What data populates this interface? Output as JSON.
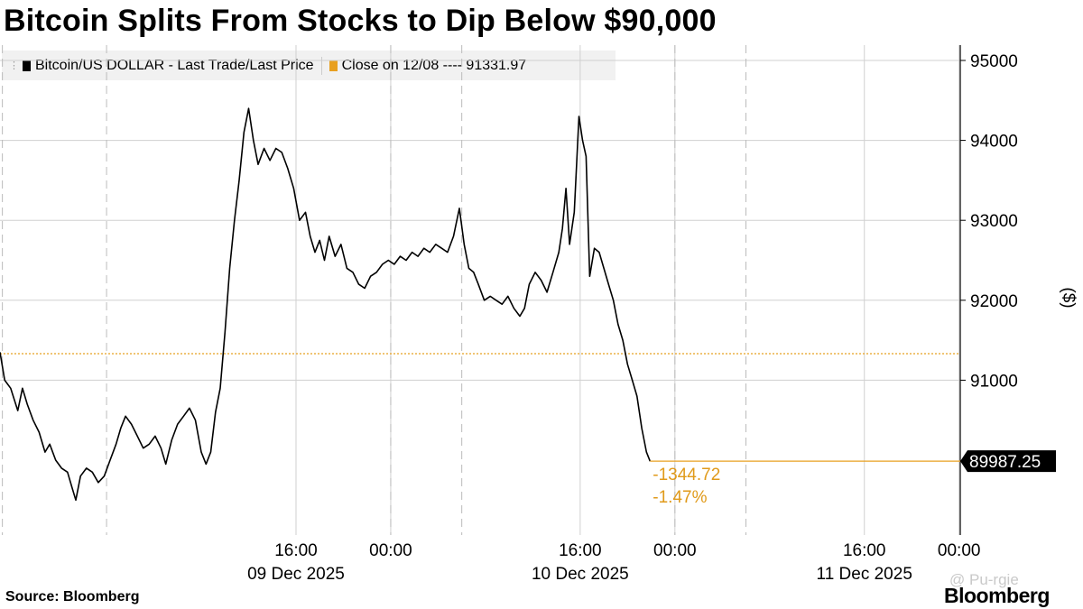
{
  "header": {
    "title": "Bitcoin Splits From Stocks to Dip Below $90,000"
  },
  "legend": {
    "series_label": "Bitcoin/US DOLLAR - Last Trade/Last Price",
    "close_label": "Close on 12/08 ---- 91331.97"
  },
  "footer": {
    "source": "Source:  Bloomberg",
    "brand": "Bloomberg",
    "watermark": "@ Pu-rgie"
  },
  "colors": {
    "series": "#000000",
    "close": "#e8a020",
    "grid": "#d0d0d0",
    "text_orange": "#e09a1a"
  },
  "chart_data": {
    "type": "line",
    "ylabel": "($)",
    "y_ticks": [
      91000,
      92000,
      93000,
      94000,
      95000
    ],
    "ylim": [
      89000,
      95200
    ],
    "xlim_hours": [
      -9,
      72.1
    ],
    "x_time_labels": [
      {
        "hour": 16,
        "label": "16:00"
      },
      {
        "hour": 24,
        "label": "00:00"
      },
      {
        "hour": 40,
        "label": "16:00"
      },
      {
        "hour": 48,
        "label": "00:00"
      },
      {
        "hour": 64,
        "label": "16:00"
      },
      {
        "hour": 72,
        "label": "00:00"
      }
    ],
    "x_date_labels": [
      {
        "hour": 16,
        "label": "09 Dec 2025"
      },
      {
        "hour": 40,
        "label": "10 Dec 2025"
      },
      {
        "hour": 64,
        "label": "11 Dec 2025"
      }
    ],
    "day_dividers_hours": [
      0,
      24,
      48
    ],
    "session_dividers_hours": [
      -8.8,
      30,
      54
    ],
    "reference_line": {
      "label": "Close on 12/08",
      "value": 91331.97
    },
    "last_value": {
      "value": 89987.25,
      "label": "89987.25",
      "change": "-1344.72",
      "change_pct": "-1.47%"
    },
    "series": [
      {
        "name": "Bitcoin/US DOLLAR - Last Trade/Last Price",
        "points": [
          [
            -9,
            91350
          ],
          [
            -8.6,
            91000
          ],
          [
            -8.1,
            90900
          ],
          [
            -7.5,
            90620
          ],
          [
            -7.1,
            90900
          ],
          [
            -6.7,
            90700
          ],
          [
            -6.2,
            90500
          ],
          [
            -5.7,
            90350
          ],
          [
            -5.2,
            90100
          ],
          [
            -4.8,
            90200
          ],
          [
            -4.3,
            90000
          ],
          [
            -3.8,
            89900
          ],
          [
            -3.3,
            89850
          ],
          [
            -2.9,
            89650
          ],
          [
            -2.6,
            89500
          ],
          [
            -2.2,
            89800
          ],
          [
            -1.7,
            89900
          ],
          [
            -1.2,
            89850
          ],
          [
            -0.7,
            89720
          ],
          [
            -0.2,
            89800
          ],
          [
            0.3,
            90000
          ],
          [
            0.8,
            90200
          ],
          [
            1.2,
            90400
          ],
          [
            1.6,
            90550
          ],
          [
            2.1,
            90450
          ],
          [
            2.6,
            90300
          ],
          [
            3.1,
            90150
          ],
          [
            3.6,
            90200
          ],
          [
            4.1,
            90300
          ],
          [
            4.6,
            90150
          ],
          [
            5.0,
            89950
          ],
          [
            5.5,
            90250
          ],
          [
            6.0,
            90450
          ],
          [
            6.5,
            90550
          ],
          [
            7.0,
            90650
          ],
          [
            7.5,
            90500
          ],
          [
            8.0,
            90100
          ],
          [
            8.4,
            89950
          ],
          [
            8.8,
            90100
          ],
          [
            9.2,
            90600
          ],
          [
            9.6,
            90900
          ],
          [
            10.0,
            91600
          ],
          [
            10.4,
            92400
          ],
          [
            10.8,
            93000
          ],
          [
            11.2,
            93500
          ],
          [
            11.6,
            94100
          ],
          [
            12.0,
            94400
          ],
          [
            12.4,
            94000
          ],
          [
            12.8,
            93700
          ],
          [
            13.3,
            93900
          ],
          [
            13.8,
            93750
          ],
          [
            14.3,
            93900
          ],
          [
            14.8,
            93850
          ],
          [
            15.3,
            93650
          ],
          [
            15.8,
            93400
          ],
          [
            16.3,
            93000
          ],
          [
            16.8,
            93100
          ],
          [
            17.2,
            92800
          ],
          [
            17.6,
            92600
          ],
          [
            18.0,
            92750
          ],
          [
            18.4,
            92500
          ],
          [
            18.8,
            92800
          ],
          [
            19.3,
            92550
          ],
          [
            19.8,
            92700
          ],
          [
            20.3,
            92400
          ],
          [
            20.8,
            92350
          ],
          [
            21.3,
            92200
          ],
          [
            21.8,
            92150
          ],
          [
            22.3,
            92300
          ],
          [
            22.8,
            92350
          ],
          [
            23.3,
            92450
          ],
          [
            23.8,
            92500
          ],
          [
            24.3,
            92450
          ],
          [
            24.8,
            92550
          ],
          [
            25.3,
            92500
          ],
          [
            25.8,
            92600
          ],
          [
            26.3,
            92550
          ],
          [
            26.8,
            92650
          ],
          [
            27.3,
            92600
          ],
          [
            27.8,
            92700
          ],
          [
            28.3,
            92650
          ],
          [
            28.8,
            92600
          ],
          [
            29.3,
            92800
          ],
          [
            29.8,
            93150
          ],
          [
            30.2,
            92700
          ],
          [
            30.6,
            92400
          ],
          [
            31.0,
            92350
          ],
          [
            31.4,
            92200
          ],
          [
            31.9,
            92000
          ],
          [
            32.4,
            92050
          ],
          [
            32.9,
            92000
          ],
          [
            33.4,
            91950
          ],
          [
            33.9,
            92050
          ],
          [
            34.4,
            91900
          ],
          [
            34.9,
            91800
          ],
          [
            35.3,
            91900
          ],
          [
            35.7,
            92200
          ],
          [
            36.2,
            92350
          ],
          [
            36.7,
            92250
          ],
          [
            37.2,
            92100
          ],
          [
            37.7,
            92350
          ],
          [
            38.2,
            92600
          ],
          [
            38.5,
            92900
          ],
          [
            38.8,
            93400
          ],
          [
            39.1,
            92700
          ],
          [
            39.5,
            93100
          ],
          [
            39.9,
            94300
          ],
          [
            40.2,
            94000
          ],
          [
            40.5,
            93800
          ],
          [
            40.8,
            92300
          ],
          [
            41.2,
            92650
          ],
          [
            41.6,
            92600
          ],
          [
            42.0,
            92400
          ],
          [
            42.4,
            92200
          ],
          [
            42.8,
            92000
          ],
          [
            43.2,
            91700
          ],
          [
            43.6,
            91500
          ],
          [
            44.0,
            91200
          ],
          [
            44.4,
            91000
          ],
          [
            44.8,
            90800
          ],
          [
            45.2,
            90400
          ],
          [
            45.6,
            90100
          ],
          [
            45.9,
            89987
          ]
        ]
      }
    ]
  }
}
